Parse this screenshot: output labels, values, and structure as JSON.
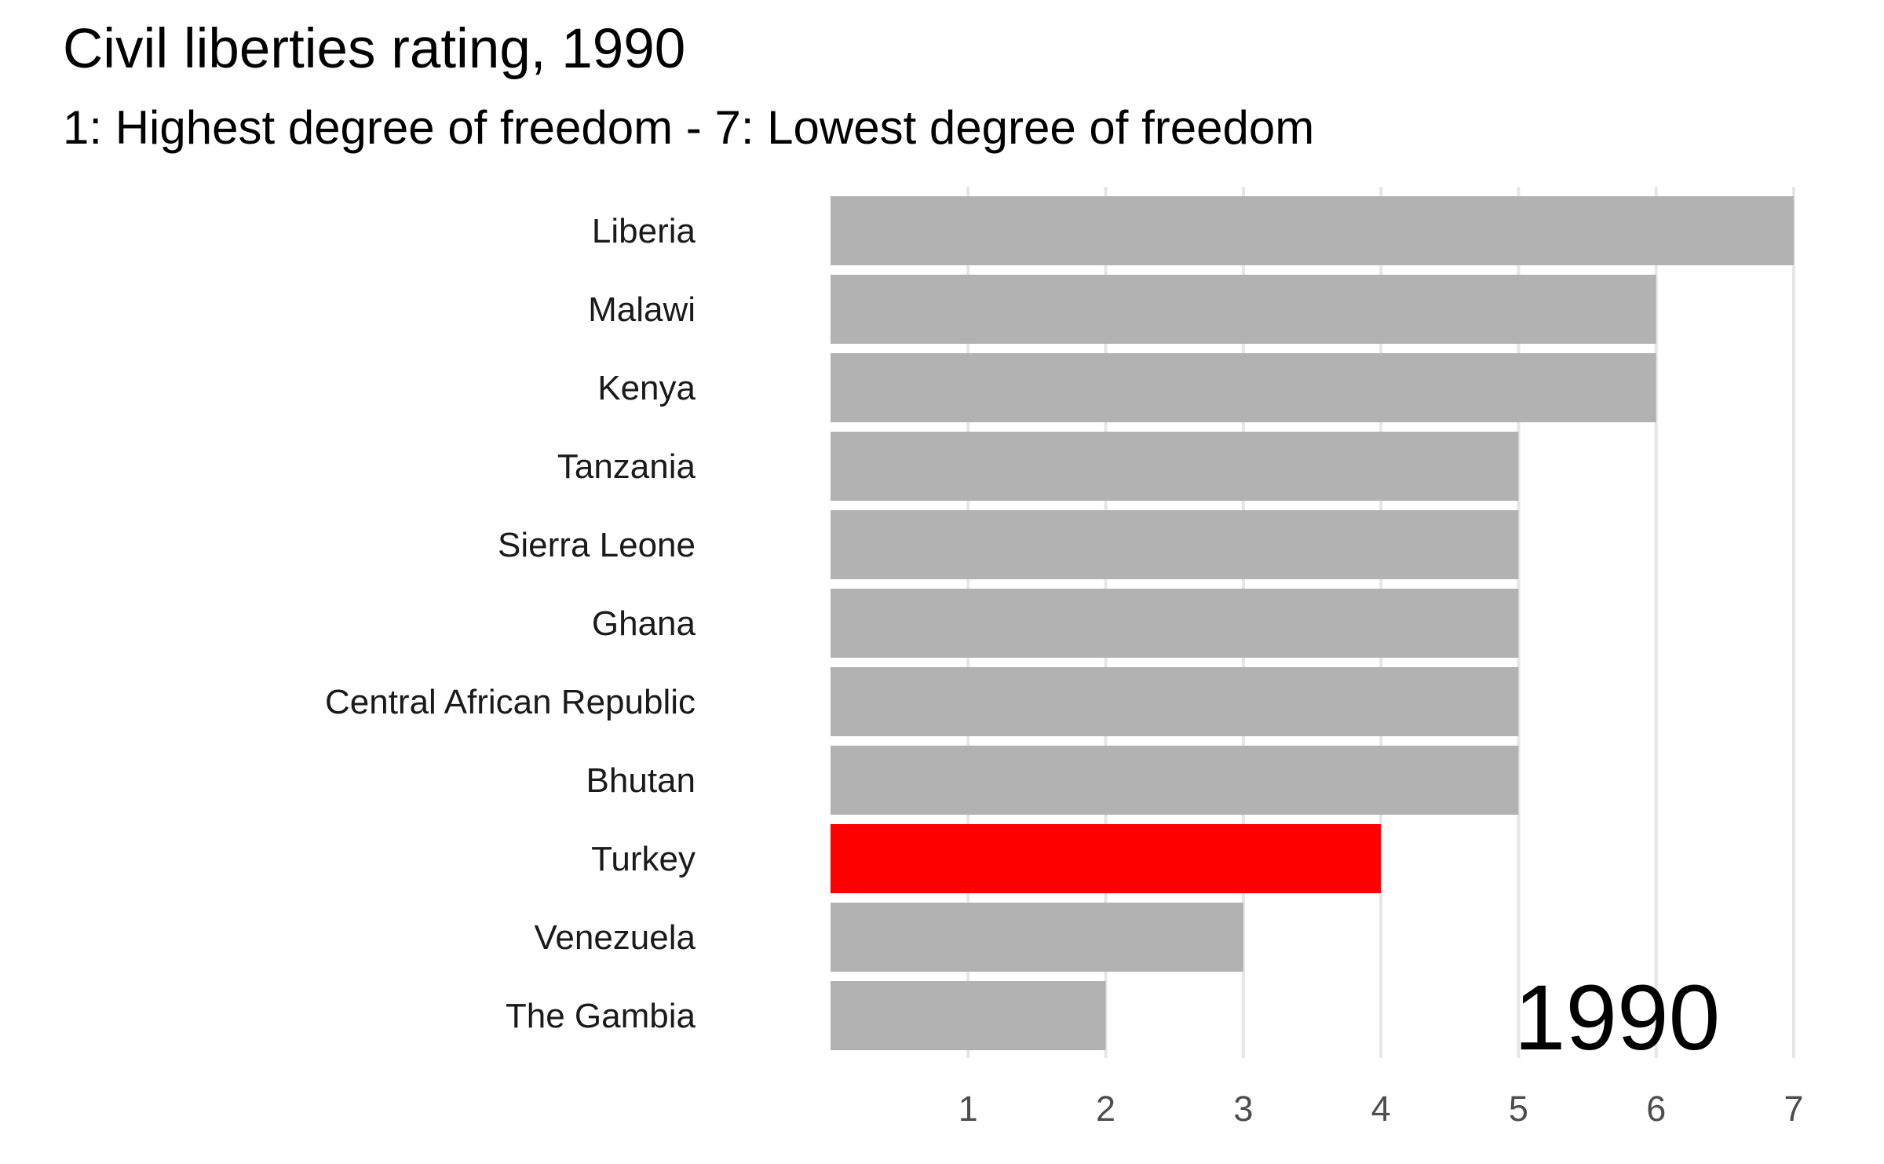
{
  "chart_data": {
    "type": "bar",
    "orientation": "horizontal",
    "title": "Civil liberties rating, 1990",
    "subtitle": "1: Highest degree of freedom - 7: Lowest degree of freedom",
    "year_label": "1990",
    "categories": [
      "Liberia",
      "Malawi",
      "Kenya",
      "Tanzania",
      "Sierra Leone",
      "Ghana",
      "Central African Republic",
      "Bhutan",
      "Turkey",
      "Venezuela",
      "The Gambia"
    ],
    "values": [
      7,
      6,
      6,
      5,
      5,
      5,
      5,
      5,
      4,
      3,
      2
    ],
    "highlight": "Turkey",
    "xlim": [
      0,
      7
    ],
    "x_ticks": [
      1,
      2,
      3,
      4,
      5,
      6,
      7
    ],
    "grid": "vertical",
    "colors": {
      "bar": "#b2b2b2",
      "highlight": "#ff0000",
      "grid": "#e6e6e6"
    }
  }
}
